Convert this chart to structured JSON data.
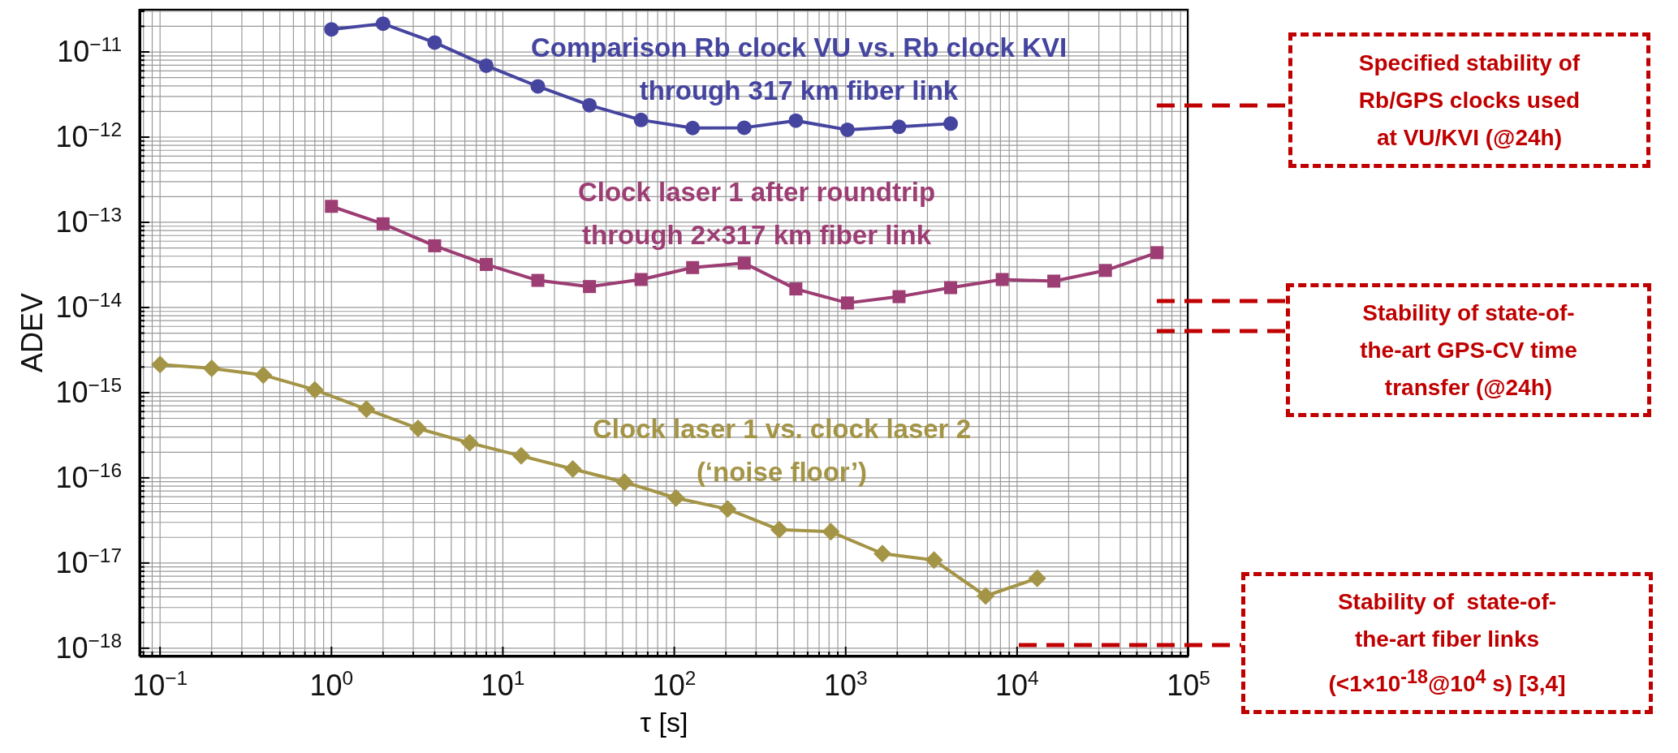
{
  "chart_data": {
    "type": "line",
    "xlabel": "τ [s]",
    "ylabel": "ADEV",
    "log": "xy",
    "grid": true,
    "xlim": [
      0.076,
      100000
    ],
    "ylim": [
      8e-19,
      3.2e-11
    ],
    "xticks": [
      {
        "value": 0.08,
        "label": null
      },
      {
        "value": 0.09,
        "label": null
      },
      {
        "value": 0.1,
        "label": "10$^{−1}$"
      },
      {
        "value": 0.2,
        "label": null
      },
      {
        "value": 0.3,
        "label": null
      },
      {
        "value": 0.4,
        "label": null
      },
      {
        "value": 0.5,
        "label": null
      },
      {
        "value": 0.6,
        "label": null
      },
      {
        "value": 0.7,
        "label": null
      },
      {
        "value": 0.8,
        "label": null
      },
      {
        "value": 0.9,
        "label": null
      },
      {
        "value": 1,
        "label": "10$^{0}$"
      },
      {
        "value": 2,
        "label": null
      },
      {
        "value": 3,
        "label": null
      },
      {
        "value": 4,
        "label": null
      },
      {
        "value": 5,
        "label": null
      },
      {
        "value": 6,
        "label": null
      },
      {
        "value": 7,
        "label": null
      },
      {
        "value": 8,
        "label": null
      },
      {
        "value": 9,
        "label": null
      },
      {
        "value": 10,
        "label": "10$^{1}$"
      },
      {
        "value": 20,
        "label": null
      },
      {
        "value": 30,
        "label": null
      },
      {
        "value": 40,
        "label": null
      },
      {
        "value": 50,
        "label": null
      },
      {
        "value": 60,
        "label": null
      },
      {
        "value": 70,
        "label": null
      },
      {
        "value": 80,
        "label": null
      },
      {
        "value": 90,
        "label": null
      },
      {
        "value": 100,
        "label": "10$^{2}$"
      },
      {
        "value": 200,
        "label": null
      },
      {
        "value": 300,
        "label": null
      },
      {
        "value": 400,
        "label": null
      },
      {
        "value": 500,
        "label": null
      },
      {
        "value": 600,
        "label": null
      },
      {
        "value": 700,
        "label": null
      },
      {
        "value": 800,
        "label": null
      },
      {
        "value": 900,
        "label": null
      },
      {
        "value": 1000,
        "label": "10$^{3}$"
      },
      {
        "value": 2000,
        "label": null
      },
      {
        "value": 3000,
        "label": null
      },
      {
        "value": 4000,
        "label": null
      },
      {
        "value": 5000,
        "label": null
      },
      {
        "value": 6000,
        "label": null
      },
      {
        "value": 7000,
        "label": null
      },
      {
        "value": 8000,
        "label": null
      },
      {
        "value": 9000,
        "label": null
      },
      {
        "value": 10000,
        "label": "10$^{4}$"
      },
      {
        "value": 20000,
        "label": null
      },
      {
        "value": 30000,
        "label": null
      },
      {
        "value": 40000,
        "label": null
      },
      {
        "value": 50000,
        "label": null
      },
      {
        "value": 60000,
        "label": null
      },
      {
        "value": 70000,
        "label": null
      },
      {
        "value": 80000,
        "label": null
      },
      {
        "value": 90000,
        "label": null
      },
      {
        "value": 100000,
        "label": "10$^{5}$"
      }
    ],
    "yticks": [
      {
        "value": 9e-19,
        "label": null
      },
      {
        "value": 1e-18,
        "label": "10$^{−18}$"
      },
      {
        "value": 2e-18,
        "label": null
      },
      {
        "value": 3e-18,
        "label": null
      },
      {
        "value": 4e-18,
        "label": null
      },
      {
        "value": 5e-18,
        "label": null
      },
      {
        "value": 6e-18,
        "label": null
      },
      {
        "value": 7e-18,
        "label": null
      },
      {
        "value": 8e-18,
        "label": null
      },
      {
        "value": 9e-18,
        "label": null
      },
      {
        "value": 1e-17,
        "label": "10$^{−17}$"
      },
      {
        "value": 2e-17,
        "label": null
      },
      {
        "value": 3e-17,
        "label": null
      },
      {
        "value": 4e-17,
        "label": null
      },
      {
        "value": 5e-17,
        "label": null
      },
      {
        "value": 6e-17,
        "label": null
      },
      {
        "value": 7e-17,
        "label": null
      },
      {
        "value": 8e-17,
        "label": null
      },
      {
        "value": 9e-17,
        "label": null
      },
      {
        "value": 1e-16,
        "label": "10$^{−16}$"
      },
      {
        "value": 2e-16,
        "label": null
      },
      {
        "value": 3e-16,
        "label": null
      },
      {
        "value": 4e-16,
        "label": null
      },
      {
        "value": 5e-16,
        "label": null
      },
      {
        "value": 6e-16,
        "label": null
      },
      {
        "value": 7e-16,
        "label": null
      },
      {
        "value": 8e-16,
        "label": null
      },
      {
        "value": 9e-16,
        "label": null
      },
      {
        "value": 1e-15,
        "label": "10$^{−15}$"
      },
      {
        "value": 2e-15,
        "label": null
      },
      {
        "value": 3e-15,
        "label": null
      },
      {
        "value": 4e-15,
        "label": null
      },
      {
        "value": 5e-15,
        "label": null
      },
      {
        "value": 6e-15,
        "label": null
      },
      {
        "value": 7e-15,
        "label": null
      },
      {
        "value": 8e-15,
        "label": null
      },
      {
        "value": 9e-15,
        "label": null
      },
      {
        "value": 1e-14,
        "label": "10$^{−14}$"
      },
      {
        "value": 2e-14,
        "label": null
      },
      {
        "value": 3e-14,
        "label": null
      },
      {
        "value": 4e-14,
        "label": null
      },
      {
        "value": 5e-14,
        "label": null
      },
      {
        "value": 6e-14,
        "label": null
      },
      {
        "value": 7e-14,
        "label": null
      },
      {
        "value": 8e-14,
        "label": null
      },
      {
        "value": 9e-14,
        "label": null
      },
      {
        "value": 1e-13,
        "label": "10$^{−13}$"
      },
      {
        "value": 2e-13,
        "label": null
      },
      {
        "value": 3e-13,
        "label": null
      },
      {
        "value": 4e-13,
        "label": null
      },
      {
        "value": 5e-13,
        "label": null
      },
      {
        "value": 6e-13,
        "label": null
      },
      {
        "value": 7e-13,
        "label": null
      },
      {
        "value": 8e-13,
        "label": null
      },
      {
        "value": 9e-13,
        "label": null
      },
      {
        "value": 1e-12,
        "label": "10$^{−12}$"
      },
      {
        "value": 2e-12,
        "label": null
      },
      {
        "value": 3e-12,
        "label": null
      },
      {
        "value": 4e-12,
        "label": null
      },
      {
        "value": 5e-12,
        "label": null
      },
      {
        "value": 6e-12,
        "label": null
      },
      {
        "value": 7e-12,
        "label": null
      },
      {
        "value": 8e-12,
        "label": null
      },
      {
        "value": 9e-12,
        "label": null
      },
      {
        "value": 1e-11,
        "label": "10$^{−11}$"
      },
      {
        "value": 2e-11,
        "label": null
      },
      {
        "value": 3e-11,
        "label": null
      }
    ],
    "series": [
      {
        "name": "Comparison Rb clock VU vs. Rb clock KVI\nthrough 317 km fiber link",
        "color": "#4545a0",
        "marker": "circle",
        "x": [
          1,
          2,
          4,
          8,
          16,
          32,
          64,
          128,
          256,
          512,
          1024,
          2048,
          4096
        ],
        "values": [
          1.84e-11,
          2.15e-11,
          1.29e-11,
          6.9e-12,
          3.94e-12,
          2.37e-12,
          1.59e-12,
          1.28e-12,
          1.29e-12,
          1.56e-12,
          1.22e-12,
          1.32e-12,
          1.44e-12
        ]
      },
      {
        "name": "Clock laser 1 after roundtrip\nthrough 2×317 km fiber link",
        "color": "#9c3d73",
        "marker": "square",
        "x": [
          1,
          2,
          4,
          8,
          16,
          32,
          64,
          128,
          256,
          512,
          1024,
          2048,
          4096,
          8192,
          16384,
          32768,
          65536
        ],
        "values": [
          1.54e-13,
          9.6e-14,
          5.3e-14,
          3.2e-14,
          2.08e-14,
          1.76e-14,
          2.13e-14,
          2.94e-14,
          3.32e-14,
          1.65e-14,
          1.13e-14,
          1.34e-14,
          1.71e-14,
          2.13e-14,
          2.04e-14,
          2.72e-14,
          4.4e-14
        ]
      },
      {
        "name": "Clock laser 1 vs. clock laser 2\n(‘noise floor’)",
        "color": "#a39446",
        "marker": "diamond",
        "x": [
          0.1,
          0.2,
          0.4,
          0.8,
          1.6,
          3.2,
          6.4,
          12.8,
          25.6,
          51.2,
          102.4,
          204.8,
          409.6,
          819.2,
          1638.4,
          3276.8,
          6553.6,
          13107.2
        ],
        "values": [
          2.14e-15,
          1.93e-15,
          1.61e-15,
          1.08e-15,
          6.4e-16,
          3.8e-16,
          2.57e-16,
          1.81e-16,
          1.27e-16,
          8.9e-17,
          5.8e-17,
          4.3e-17,
          2.46e-17,
          2.33e-17,
          1.29e-17,
          1.08e-17,
          4.1e-18,
          6.6e-18
        ]
      }
    ],
    "annotations": [
      "Specified stability of\nRb/GPS clocks used\nat VU/KVI (@24h)",
      "Stability of state-of-\nthe-art GPS-CV time\ntransfer (@24h)",
      "Stability of  state-of-\nthe-art fiber links\n(<1×10$^{-18}$@10$^{4}$ s) [3,4]"
    ]
  }
}
